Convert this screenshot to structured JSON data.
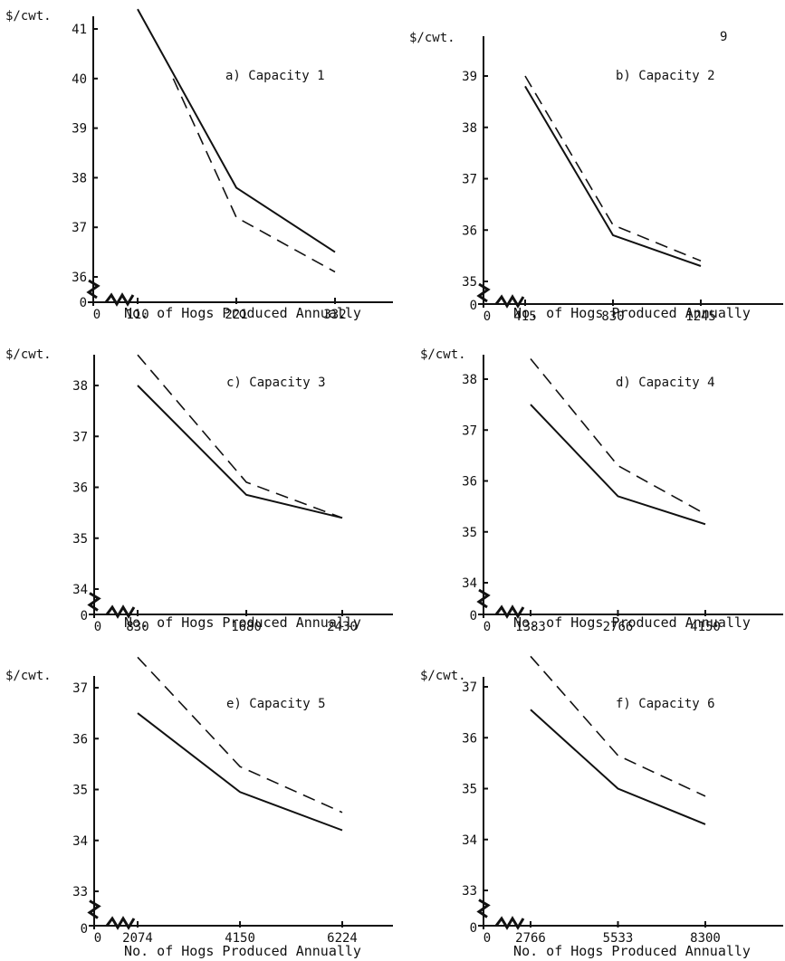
{
  "page_number": "9",
  "chart_data": [
    {
      "type": "line",
      "title": "a) Capacity 1",
      "ylabel": "$/cwt.",
      "xlabel": "No. of Hogs Produced Annually",
      "x_ticks": [
        "0",
        "110",
        "221",
        "332"
      ],
      "y_ticks": [
        "0",
        "36",
        "37",
        "38",
        "39",
        "40",
        "41"
      ],
      "axis_break": true,
      "series": [
        {
          "style": "solid",
          "points": [
            [
              110,
              41.4
            ],
            [
              221,
              37.8
            ],
            [
              332,
              36.5
            ]
          ]
        },
        {
          "style": "dashed",
          "points": [
            [
              150,
              40.0
            ],
            [
              221,
              37.2
            ],
            [
              332,
              36.1
            ]
          ]
        }
      ]
    },
    {
      "type": "line",
      "title": "b) Capacity 2",
      "ylabel": "$/cwt.",
      "xlabel": "No. of Hogs Produced Annually",
      "x_ticks": [
        "0",
        "415",
        "830",
        "1245"
      ],
      "y_ticks": [
        "0",
        "35",
        "36",
        "37",
        "38",
        "39"
      ],
      "axis_break": true,
      "series": [
        {
          "style": "solid",
          "points": [
            [
              415,
              38.8
            ],
            [
              830,
              35.9
            ],
            [
              1245,
              35.3
            ]
          ]
        },
        {
          "style": "dashed",
          "points": [
            [
              415,
              39.0
            ],
            [
              830,
              36.1
            ],
            [
              1245,
              35.4
            ]
          ]
        }
      ]
    },
    {
      "type": "line",
      "title": "c) Capacity 3",
      "ylabel": "$/cwt.",
      "xlabel": "No. of Hogs Produced Annually",
      "x_ticks": [
        "0",
        "830",
        "1680",
        "2430"
      ],
      "y_ticks": [
        "0",
        "34",
        "35",
        "36",
        "37",
        "38"
      ],
      "axis_break": true,
      "series": [
        {
          "style": "solid",
          "points": [
            [
              830,
              38.0
            ],
            [
              1680,
              35.85
            ],
            [
              2430,
              35.4
            ]
          ]
        },
        {
          "style": "dashed",
          "points": [
            [
              830,
              38.6
            ],
            [
              1680,
              36.1
            ],
            [
              2430,
              35.4
            ]
          ]
        }
      ]
    },
    {
      "type": "line",
      "title": "d) Capacity 4",
      "ylabel": "$/cwt.",
      "xlabel": "No. of Hogs Produced Annually",
      "x_ticks": [
        "0",
        "1383",
        "2766",
        "4150"
      ],
      "y_ticks": [
        "0",
        "34",
        "35",
        "36",
        "37",
        "38"
      ],
      "axis_break": true,
      "series": [
        {
          "style": "solid",
          "points": [
            [
              1383,
              37.5
            ],
            [
              2766,
              35.7
            ],
            [
              4150,
              35.15
            ]
          ]
        },
        {
          "style": "dashed",
          "points": [
            [
              1383,
              38.4
            ],
            [
              2766,
              36.3
            ],
            [
              4150,
              35.35
            ]
          ]
        }
      ]
    },
    {
      "type": "line",
      "title": "e) Capacity 5",
      "ylabel": "$/cwt.",
      "xlabel": "No. of Hogs Produced Annually",
      "x_ticks": [
        "0",
        "2074",
        "4150",
        "6224"
      ],
      "y_ticks": [
        "0",
        "33",
        "34",
        "35",
        "36",
        "37"
      ],
      "axis_break": true,
      "series": [
        {
          "style": "solid",
          "points": [
            [
              2074,
              36.5
            ],
            [
              4150,
              34.95
            ],
            [
              6224,
              34.2
            ]
          ]
        },
        {
          "style": "dashed",
          "points": [
            [
              2074,
              37.6
            ],
            [
              4150,
              35.45
            ],
            [
              6224,
              34.55
            ]
          ]
        }
      ]
    },
    {
      "type": "line",
      "title": "f) Capacity 6",
      "ylabel": "$/cwt.",
      "xlabel": "No. of Hogs Produced Annually",
      "x_ticks": [
        "0",
        "2766",
        "5533",
        "8300"
      ],
      "y_ticks": [
        "0",
        "33",
        "34",
        "35",
        "36",
        "37"
      ],
      "axis_break": true,
      "series": [
        {
          "style": "solid",
          "points": [
            [
              2766,
              36.55
            ],
            [
              5533,
              35.0
            ],
            [
              8300,
              34.3
            ]
          ]
        },
        {
          "style": "dashed",
          "points": [
            [
              2766,
              37.6
            ],
            [
              5533,
              35.65
            ],
            [
              8300,
              34.85
            ]
          ]
        }
      ]
    }
  ]
}
